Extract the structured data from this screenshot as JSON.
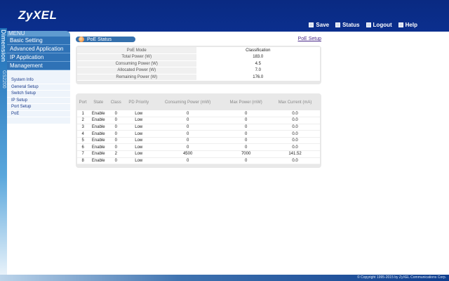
{
  "header": {
    "logo": "ZyXEL",
    "links": [
      {
        "label": "Save",
        "icon": "save-icon"
      },
      {
        "label": "Status",
        "icon": "status-icon"
      },
      {
        "label": "Logout",
        "icon": "logout-icon"
      },
      {
        "label": "Help",
        "icon": "help-icon"
      }
    ]
  },
  "side_strip": {
    "brand": "Dimension",
    "model": "GS2200"
  },
  "menu": {
    "title": "MENU",
    "items": [
      "Basic Setting",
      "Advanced Application",
      "IP Application",
      "Management"
    ],
    "sub_items": [
      "System Info",
      "General Setup",
      "Switch Setup",
      "IP Setup",
      "Port Setup",
      "PoE"
    ]
  },
  "poe": {
    "title": "PoE Status",
    "setup_link": "PoE Setup",
    "stats": [
      {
        "k": "PoE Mode",
        "v": "Classification"
      },
      {
        "k": "Total Power (W)",
        "v": "183.0"
      },
      {
        "k": "Consuming Power (W)",
        "v": "4.5"
      },
      {
        "k": "Allocated Power (W)",
        "v": "7.0"
      },
      {
        "k": "Remaining Power (W)",
        "v": "176.0"
      }
    ],
    "columns": [
      "Port",
      "State",
      "Class",
      "PD Priority",
      "Consuming Power (mW)",
      "Max Power (mW)",
      "Max Current (mA)"
    ],
    "rows": [
      [
        "1",
        "Enable",
        "0",
        "Low",
        "0",
        "0",
        "0.0"
      ],
      [
        "2",
        "Enable",
        "0",
        "Low",
        "0",
        "0",
        "0.0"
      ],
      [
        "3",
        "Enable",
        "0",
        "Low",
        "0",
        "0",
        "0.0"
      ],
      [
        "4",
        "Enable",
        "0",
        "Low",
        "0",
        "0",
        "0.0"
      ],
      [
        "5",
        "Enable",
        "0",
        "Low",
        "0",
        "0",
        "0.0"
      ],
      [
        "6",
        "Enable",
        "0",
        "Low",
        "0",
        "0",
        "0.0"
      ],
      [
        "7",
        "Enable",
        "2",
        "Low",
        "4500",
        "7000",
        "141.52"
      ],
      [
        "8",
        "Enable",
        "0",
        "Low",
        "0",
        "0",
        "0.0"
      ]
    ]
  },
  "footer": "© Copyright 1995-2015 by ZyXEL Communications Corp."
}
